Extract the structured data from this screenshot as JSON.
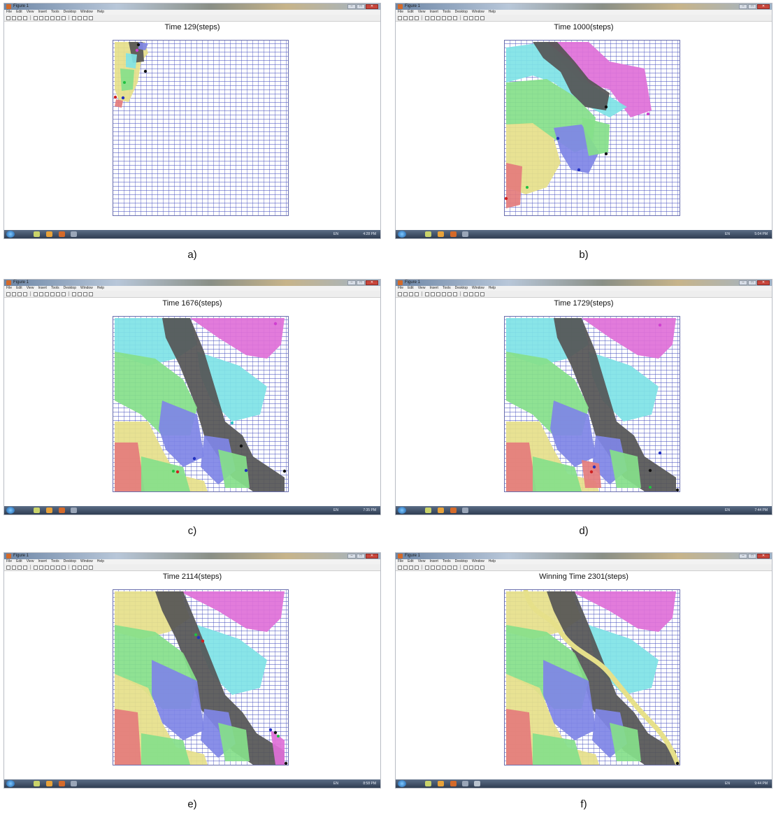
{
  "window": {
    "title": "Figure 1",
    "menu": [
      "File",
      "Edit",
      "View",
      "Insert",
      "Tools",
      "Desktop",
      "Window",
      "Help"
    ]
  },
  "panels": [
    {
      "caption": "a)",
      "figure_title": "Time 129(steps)",
      "clock": "4:28 PM",
      "lang": "EN"
    },
    {
      "caption": "b)",
      "figure_title": "Time 1000(steps)",
      "clock": "5:04 PM",
      "lang": "EN"
    },
    {
      "caption": "c)",
      "figure_title": "Time 1676(steps)",
      "clock": "7:35 PM",
      "lang": "EN"
    },
    {
      "caption": "d)",
      "figure_title": "Time 1729(steps)",
      "clock": "7:44 PM",
      "lang": "EN"
    },
    {
      "caption": "e)",
      "figure_title": "Time 2114(steps)",
      "clock": "8:58 PM",
      "lang": "EN"
    },
    {
      "caption": "f)",
      "figure_title": "Winning Time 2301(steps)",
      "clock": "9:44 PM",
      "lang": "EN"
    }
  ],
  "colors": {
    "maze_lines": "#4650be",
    "black": "#555555",
    "magenta": "#e070d8",
    "cyan": "#7fe3e6",
    "green": "#86e08a",
    "yellow": "#e6e08a",
    "blue": "#7f86e6",
    "red": "#e47c7c"
  }
}
